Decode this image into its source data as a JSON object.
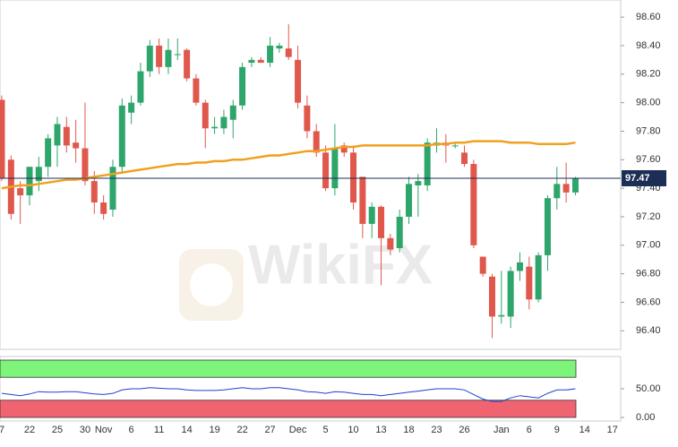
{
  "chart_data": {
    "type": "candlestick",
    "watermark": "WikiFX",
    "categories": [
      "7",
      null,
      null,
      "22",
      null,
      null,
      "25",
      null,
      null,
      "30",
      null,
      "Nov",
      null,
      null,
      "6",
      null,
      null,
      "11",
      null,
      null,
      "14",
      null,
      null,
      "19",
      null,
      null,
      "22",
      null,
      null,
      "27",
      null,
      null,
      "Dec",
      null,
      null,
      "5",
      null,
      null,
      "10",
      null,
      null,
      "13",
      null,
      null,
      "18",
      null,
      null,
      "23",
      null,
      null,
      "26",
      null,
      null,
      null,
      "Jan",
      null,
      null,
      "6",
      null,
      null,
      "9",
      null,
      null,
      "14",
      null,
      null,
      "17"
    ],
    "open": [
      98.02,
      97.6,
      97.4,
      97.35,
      97.45,
      97.55,
      97.7,
      97.83,
      97.72,
      97.68,
      97.45,
      97.3,
      97.25,
      97.55,
      97.93,
      98.0,
      98.22,
      98.4,
      98.25,
      98.34,
      98.37,
      98.17,
      98.0,
      97.82,
      97.82,
      97.88,
      97.98,
      98.28,
      98.3,
      98.28,
      98.38,
      98.38,
      98.3,
      97.98,
      97.8,
      97.65,
      97.4,
      97.7,
      97.65,
      97.48,
      97.15,
      97.27,
      97.05,
      96.98,
      97.2,
      97.42,
      97.42,
      97.7,
      97.72,
      97.7,
      97.65,
      97.57,
      96.92,
      96.78,
      96.5,
      96.5,
      96.82,
      96.85,
      96.62,
      96.93,
      97.33,
      97.43,
      97.37,
      null,
      null,
      null,
      null
    ],
    "high": [
      98.05,
      97.63,
      97.45,
      97.55,
      97.62,
      97.78,
      97.9,
      97.9,
      97.88,
      98.0,
      97.52,
      97.35,
      97.6,
      98.03,
      98.05,
      98.28,
      98.44,
      98.45,
      98.45,
      98.45,
      98.38,
      98.2,
      98.02,
      97.9,
      97.95,
      98.02,
      98.28,
      98.32,
      98.32,
      98.46,
      98.42,
      98.55,
      98.4,
      98.05,
      97.85,
      97.7,
      97.85,
      97.72,
      97.7,
      97.48,
      97.3,
      97.28,
      97.08,
      97.25,
      97.48,
      97.5,
      97.75,
      97.82,
      97.78,
      97.72,
      97.7,
      97.6,
      96.92,
      96.8,
      96.82,
      96.85,
      96.95,
      96.92,
      96.95,
      97.35,
      97.55,
      97.58,
      97.48,
      null,
      null,
      null,
      null
    ],
    "low": [
      97.45,
      97.18,
      97.15,
      97.28,
      97.38,
      97.48,
      97.55,
      97.65,
      97.58,
      97.42,
      97.22,
      97.18,
      97.2,
      97.5,
      97.85,
      97.98,
      98.18,
      98.2,
      98.2,
      98.3,
      98.15,
      97.98,
      97.68,
      97.78,
      97.78,
      97.75,
      97.95,
      98.25,
      98.28,
      98.25,
      98.35,
      98.3,
      97.96,
      97.75,
      97.62,
      97.38,
      97.35,
      97.62,
      97.25,
      97.05,
      97.05,
      96.72,
      96.93,
      96.95,
      97.15,
      97.2,
      97.38,
      97.65,
      97.58,
      97.68,
      97.55,
      96.98,
      96.78,
      96.35,
      96.45,
      96.42,
      96.75,
      96.55,
      96.6,
      96.82,
      97.25,
      97.3,
      97.35,
      null,
      null,
      null,
      null
    ],
    "close": [
      97.47,
      97.22,
      97.35,
      97.55,
      97.55,
      97.75,
      97.85,
      97.7,
      97.68,
      97.45,
      97.3,
      97.22,
      97.55,
      97.98,
      98.0,
      98.22,
      98.4,
      98.25,
      98.37,
      98.34,
      98.17,
      98.0,
      97.82,
      97.83,
      97.9,
      97.98,
      98.25,
      98.3,
      98.28,
      98.4,
      98.4,
      98.32,
      98.0,
      97.8,
      97.65,
      97.4,
      97.68,
      97.65,
      97.3,
      97.15,
      97.27,
      97.05,
      96.97,
      97.2,
      97.43,
      97.45,
      97.72,
      97.72,
      97.7,
      97.7,
      97.57,
      97.0,
      96.8,
      96.5,
      96.51,
      96.82,
      96.88,
      96.62,
      96.93,
      97.33,
      97.43,
      97.37,
      97.47,
      null,
      null,
      null,
      null
    ],
    "up_color": "#2ea56b",
    "down_color": "#e0574c",
    "ma": {
      "color": "#f0a020",
      "values": [
        97.4,
        97.41,
        97.42,
        97.42,
        97.43,
        97.44,
        97.45,
        97.46,
        97.46,
        97.47,
        97.48,
        97.49,
        97.5,
        97.51,
        97.52,
        97.53,
        97.54,
        97.55,
        97.56,
        97.57,
        97.57,
        97.58,
        97.58,
        97.59,
        97.59,
        97.6,
        97.6,
        97.61,
        97.62,
        97.63,
        97.63,
        97.64,
        97.65,
        97.66,
        97.66,
        97.67,
        97.68,
        97.69,
        97.69,
        97.7,
        97.7,
        97.7,
        97.7,
        97.7,
        97.7,
        97.7,
        97.7,
        97.71,
        97.71,
        97.72,
        97.72,
        97.73,
        97.73,
        97.73,
        97.73,
        97.72,
        97.72,
        97.72,
        97.71,
        97.71,
        97.71,
        97.71,
        97.72,
        null,
        null,
        null,
        null
      ]
    },
    "last_price": 97.47,
    "last_price_color": "#1c2e55",
    "ylim": [
      96.27,
      98.72
    ],
    "yticks": [
      {
        "value": 96.4,
        "label": "96.40"
      },
      {
        "value": 96.6,
        "label": "96.60"
      },
      {
        "value": 96.8,
        "label": "96.80"
      },
      {
        "value": 97.0,
        "label": "97.00"
      },
      {
        "value": 97.2,
        "label": "97.20"
      },
      {
        "value": 97.4,
        "label": "97.40"
      },
      {
        "value": 97.6,
        "label": "97.60"
      },
      {
        "value": 97.8,
        "label": "97.80"
      },
      {
        "value": 98.0,
        "label": "98.00"
      },
      {
        "value": 98.2,
        "label": "98.20"
      },
      {
        "value": 98.4,
        "label": "98.40"
      },
      {
        "value": 98.6,
        "label": "98.60"
      }
    ],
    "rsi": {
      "color": "#2040d0",
      "ylim": [
        0,
        100
      ],
      "yticks": [
        {
          "value": 0,
          "label": "0.00"
        },
        {
          "value": 50,
          "label": "50.00"
        }
      ],
      "bands": [
        {
          "from": 70,
          "to": 100,
          "color": "#7df57a"
        },
        {
          "from": 0,
          "to": 30,
          "color": "#ef6470"
        }
      ],
      "values": [
        42,
        40,
        38,
        41,
        45,
        44,
        44,
        45,
        45,
        43,
        41,
        40,
        42,
        48,
        50,
        50,
        52,
        51,
        50,
        50,
        48,
        47,
        47,
        47,
        48,
        50,
        52,
        50,
        50,
        52,
        52,
        50,
        48,
        45,
        44,
        42,
        45,
        44,
        42,
        40,
        40,
        38,
        40,
        42,
        44,
        46,
        48,
        50,
        50,
        50,
        48,
        40,
        32,
        28,
        28,
        34,
        38,
        36,
        34,
        42,
        48,
        48,
        50,
        null,
        null,
        null,
        null
      ]
    }
  }
}
